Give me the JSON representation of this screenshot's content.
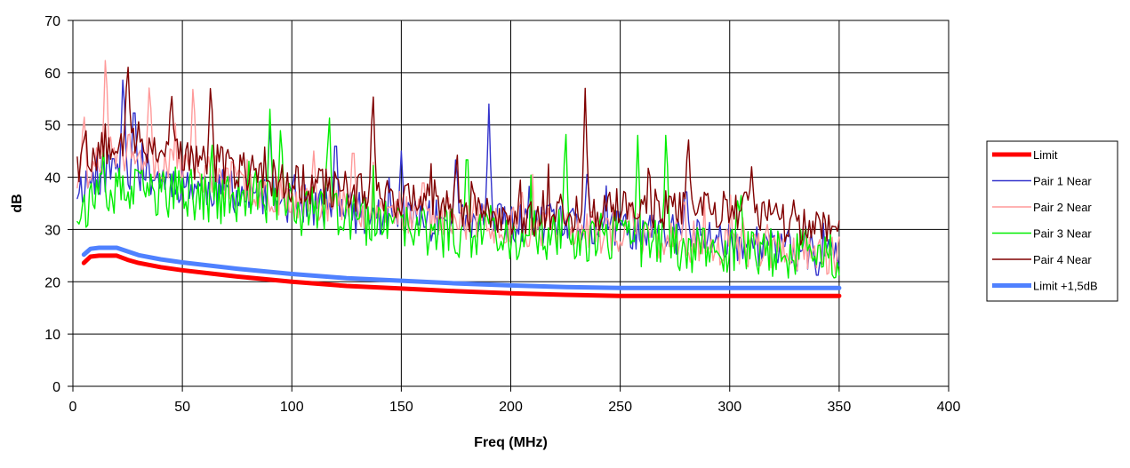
{
  "chart_data": {
    "type": "line",
    "title": "",
    "xlabel": "Freq (MHz)",
    "ylabel": "dB",
    "xlim": [
      0,
      400
    ],
    "ylim": [
      0,
      70
    ],
    "xticks": [
      0,
      50,
      100,
      150,
      200,
      250,
      300,
      350,
      400
    ],
    "yticks": [
      0,
      10,
      20,
      30,
      40,
      50,
      60,
      70
    ],
    "grid": true,
    "legend_position": "right",
    "series": [
      {
        "name": "Limit",
        "color": "#ff0000",
        "kind": "smooth",
        "points": [
          [
            5,
            23.6
          ],
          [
            8,
            24.8
          ],
          [
            12,
            25.0
          ],
          [
            20,
            25.0
          ],
          [
            25,
            24.2
          ],
          [
            30,
            23.6
          ],
          [
            40,
            22.8
          ],
          [
            50,
            22.2
          ],
          [
            75,
            21.0
          ],
          [
            100,
            20.0
          ],
          [
            125,
            19.2
          ],
          [
            150,
            18.7
          ],
          [
            175,
            18.2
          ],
          [
            200,
            17.8
          ],
          [
            225,
            17.5
          ],
          [
            250,
            17.3
          ],
          [
            300,
            17.3
          ],
          [
            350,
            17.3
          ]
        ]
      },
      {
        "name": "Pair 1 Near",
        "color": "#3333cc",
        "kind": "noisy",
        "base": [
          [
            2,
            38
          ],
          [
            20,
            42
          ],
          [
            50,
            39
          ],
          [
            100,
            35
          ],
          [
            150,
            32
          ],
          [
            200,
            31
          ],
          [
            250,
            30
          ],
          [
            300,
            28
          ],
          [
            340,
            25
          ],
          [
            350,
            26
          ]
        ],
        "amplitude": 4,
        "seed": 11,
        "spikes": [
          [
            23,
            61
          ],
          [
            28,
            56
          ],
          [
            90,
            50
          ],
          [
            120,
            50
          ],
          [
            150,
            45
          ],
          [
            175,
            45
          ],
          [
            190,
            54
          ],
          [
            235,
            42
          ],
          [
            280,
            40
          ],
          [
            340,
            20
          ]
        ]
      },
      {
        "name": "Pair 2 Near",
        "color": "#ff9999",
        "kind": "noisy",
        "base": [
          [
            2,
            40
          ],
          [
            20,
            45
          ],
          [
            50,
            42
          ],
          [
            100,
            36
          ],
          [
            150,
            33
          ],
          [
            200,
            31
          ],
          [
            250,
            29
          ],
          [
            300,
            27
          ],
          [
            350,
            25
          ]
        ],
        "amplitude": 4,
        "seed": 23,
        "spikes": [
          [
            5,
            53
          ],
          [
            15,
            65
          ],
          [
            35,
            59
          ],
          [
            55,
            59
          ],
          [
            110,
            45
          ],
          [
            128,
            48
          ],
          [
            160,
            41
          ],
          [
            205,
            38
          ],
          [
            255,
            36
          ]
        ]
      },
      {
        "name": "Pair 3 Near",
        "color": "#00ee00",
        "kind": "noisy",
        "base": [
          [
            2,
            34
          ],
          [
            20,
            37
          ],
          [
            50,
            37
          ],
          [
            100,
            34
          ],
          [
            150,
            30
          ],
          [
            200,
            29
          ],
          [
            250,
            28
          ],
          [
            300,
            26
          ],
          [
            350,
            25
          ]
        ],
        "amplitude": 5,
        "seed": 37,
        "spikes": [
          [
            90,
            53
          ],
          [
            95,
            51
          ],
          [
            117,
            54
          ],
          [
            180,
            48
          ],
          [
            225,
            51
          ],
          [
            258,
            48
          ],
          [
            271,
            51
          ],
          [
            305,
            38
          ]
        ]
      },
      {
        "name": "Pair 4 Near",
        "color": "#800000",
        "kind": "noisy",
        "base": [
          [
            2,
            42
          ],
          [
            20,
            48
          ],
          [
            50,
            44
          ],
          [
            100,
            39
          ],
          [
            150,
            36
          ],
          [
            200,
            32
          ],
          [
            250,
            34
          ],
          [
            300,
            34
          ],
          [
            350,
            29
          ]
        ],
        "amplitude": 4,
        "seed": 53,
        "spikes": [
          [
            1,
            47
          ],
          [
            5,
            48
          ],
          [
            25,
            63
          ],
          [
            45,
            57
          ],
          [
            63,
            59
          ],
          [
            137,
            58
          ],
          [
            175,
            42
          ],
          [
            234,
            57
          ],
          [
            281,
            49
          ],
          [
            310,
            42
          ],
          [
            348,
            31
          ]
        ]
      },
      {
        "name": "Limit +1,5dB",
        "color": "#4f81ff",
        "kind": "smooth",
        "points": [
          [
            5,
            25.2
          ],
          [
            8,
            26.3
          ],
          [
            12,
            26.5
          ],
          [
            20,
            26.5
          ],
          [
            25,
            25.8
          ],
          [
            30,
            25.1
          ],
          [
            40,
            24.3
          ],
          [
            50,
            23.7
          ],
          [
            75,
            22.5
          ],
          [
            100,
            21.5
          ],
          [
            125,
            20.7
          ],
          [
            150,
            20.2
          ],
          [
            175,
            19.7
          ],
          [
            200,
            19.3
          ],
          [
            225,
            19.0
          ],
          [
            250,
            18.8
          ],
          [
            300,
            18.8
          ],
          [
            350,
            18.8
          ]
        ]
      }
    ]
  }
}
